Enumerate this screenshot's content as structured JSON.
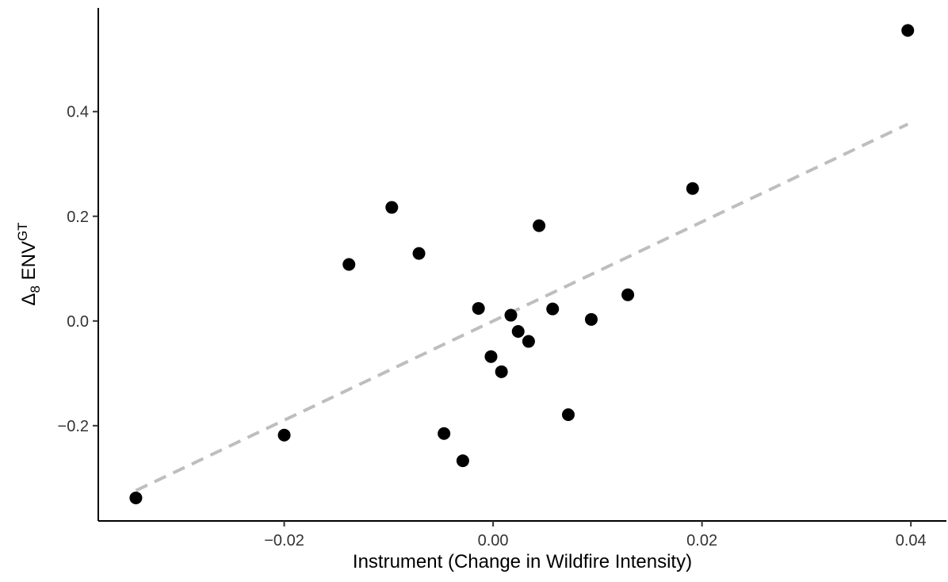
{
  "chart_data": {
    "type": "scatter",
    "x_label": "Instrument (Change in Wildfire Intensity)",
    "y_label": {
      "base": "Δ",
      "sub": "8",
      "main": " ENV",
      "sup": "GT"
    },
    "x": [
      0.0397,
      0.0191,
      0.0129,
      0.0094,
      0.0072,
      0.0057,
      0.0044,
      0.0034,
      0.0024,
      0.0017,
      0.0008,
      -0.0002,
      -0.0014,
      -0.0029,
      -0.0047,
      -0.0071,
      -0.0097,
      -0.0138,
      -0.02,
      -0.0342
    ],
    "values": [
      0.555,
      0.253,
      0.05,
      0.003,
      -0.179,
      0.023,
      0.182,
      -0.039,
      -0.02,
      0.011,
      -0.097,
      -0.068,
      0.024,
      -0.267,
      -0.215,
      0.129,
      0.217,
      0.108,
      -0.218,
      -0.338
    ],
    "color": "#000000",
    "trend_line": {
      "x": [
        -0.0342,
        0.0397
      ],
      "y": [
        -0.324,
        0.376
      ],
      "color": "#bebebe",
      "dashed": true
    },
    "xlim": [
      -0.0378,
      0.0434
    ],
    "ylim": [
      -0.382,
      0.598
    ],
    "xticks": [
      {
        "value": -0.02,
        "label": "−0.02"
      },
      {
        "value": 0,
        "label": "0.00"
      },
      0.02,
      0.04
    ],
    "yticks": [
      {
        "value": -0.2,
        "label": "−0.2"
      },
      {
        "value": 0,
        "label": "0.0"
      },
      0.2,
      0.4
    ],
    "grid": false
  }
}
